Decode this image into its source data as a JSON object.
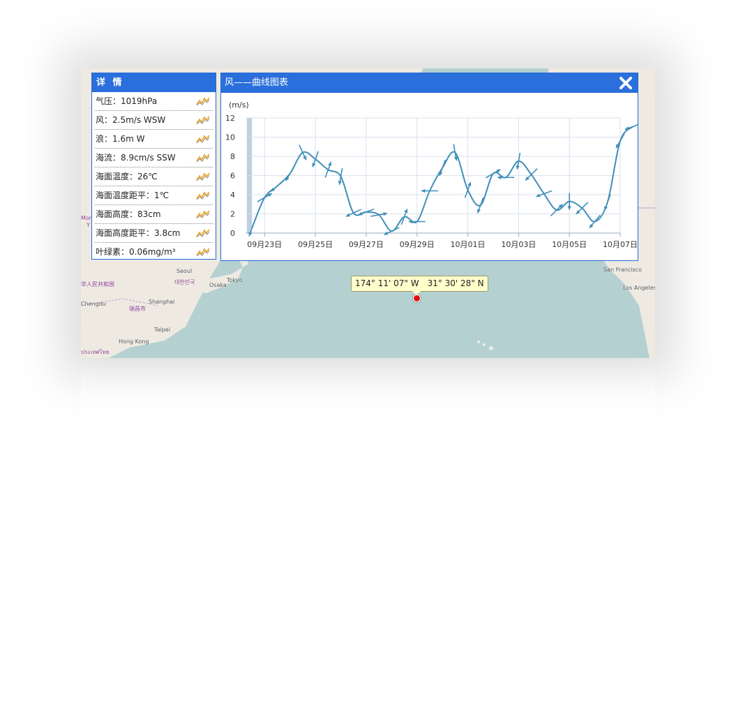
{
  "map": {
    "labels": [
      "Mor",
      "Y",
      "华人民共和国",
      "Chengdu",
      "瑞昌市",
      "Shanghai",
      "Taipei",
      "Hong Kong",
      "Seoul",
      "대한민국",
      "Osaka",
      "Tokyo",
      "San Francisco",
      "Los Angeles",
      "ประเทศไทย"
    ],
    "coordinate_tip": {
      "longitude": "174° 11' 07\" W",
      "latitude": "31° 30' 28\" N"
    },
    "colors": {
      "sea": "#b5d0d0",
      "land": "#eeeae2",
      "marker": "#e01010",
      "tip_bg": "#ffffcc"
    }
  },
  "details": {
    "title": "详 情",
    "rows": [
      {
        "label": "气压：1019hPa",
        "icon": "line-chart-icon"
      },
      {
        "label": "风：2.5m/s WSW",
        "icon": "line-chart-icon"
      },
      {
        "label": "浪：1.6m W",
        "icon": "line-chart-icon"
      },
      {
        "label": "海流：8.9cm/s SSW",
        "icon": "line-chart-icon"
      },
      {
        "label": "海面温度：26℃",
        "icon": "line-chart-icon"
      },
      {
        "label": "海面温度距平：1℃",
        "icon": "line-chart-icon"
      },
      {
        "label": "海面高度：83cm",
        "icon": "line-chart-icon"
      },
      {
        "label": "海面高度距平：3.8cm",
        "icon": "line-chart-icon"
      },
      {
        "label": "叶绿素：0.06mg/m³",
        "icon": "line-chart-icon"
      }
    ]
  },
  "chart_panel": {
    "title": "风——曲线图表",
    "close_icon": "close-icon",
    "accent": "#2a6fdb"
  },
  "chart_data": {
    "type": "line",
    "title": "风——曲线图表",
    "ylabel": "(m/s)",
    "xlabel": "",
    "ylim": [
      0,
      12
    ],
    "yticks": [
      0,
      2,
      4,
      6,
      8,
      10,
      12
    ],
    "xticks": [
      "09月23日",
      "09月25日",
      "09月27日",
      "09月29日",
      "10月01日",
      "10月03日",
      "10月05日",
      "10月07日"
    ],
    "x_day_range": [
      22.25,
      37.0
    ],
    "grid": true,
    "line_color": "#3f8fb8",
    "series": [
      {
        "values": [
          [
            22.5,
            0.5
          ],
          [
            23.0,
            3.7
          ],
          [
            23.5,
            4.9
          ],
          [
            24.0,
            6.2
          ],
          [
            24.5,
            8.4
          ],
          [
            25.0,
            7.7
          ],
          [
            25.5,
            6.6
          ],
          [
            26.0,
            5.9
          ],
          [
            26.5,
            2.1
          ],
          [
            27.0,
            2.2
          ],
          [
            27.5,
            1.9
          ],
          [
            28.0,
            0.2
          ],
          [
            28.5,
            1.7
          ],
          [
            29.0,
            1.2
          ],
          [
            29.5,
            4.4
          ],
          [
            30.0,
            6.8
          ],
          [
            30.5,
            8.4
          ],
          [
            31.0,
            4.5
          ],
          [
            31.5,
            2.9
          ],
          [
            32.0,
            6.2
          ],
          [
            32.5,
            5.8
          ],
          [
            33.0,
            7.5
          ],
          [
            33.5,
            6.1
          ],
          [
            34.0,
            4.1
          ],
          [
            34.5,
            2.4
          ],
          [
            35.0,
            3.3
          ],
          [
            35.5,
            2.6
          ],
          [
            36.0,
            1.2
          ],
          [
            36.5,
            3.2
          ],
          [
            37.0,
            9.6
          ],
          [
            37.5,
            11.1
          ]
        ],
        "wind_direction_deg": [
          200,
          60,
          230,
          210,
          155,
          200,
          20,
          190,
          245,
          250,
          80,
          245,
          20,
          270,
          270,
          200,
          170,
          20,
          200,
          60,
          270,
          190,
          225,
          250,
          45,
          180,
          225,
          220,
          200,
          210,
          250
        ]
      }
    ]
  }
}
